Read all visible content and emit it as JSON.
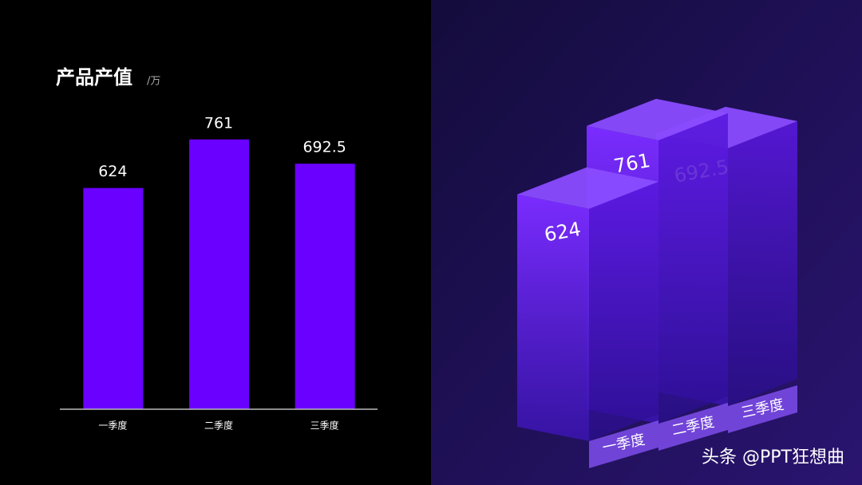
{
  "chart_data": [
    {
      "type": "bar",
      "title": "产品产值",
      "unit": "/万",
      "categories": [
        "一季度",
        "二季度",
        "三季度"
      ],
      "values": [
        624,
        761,
        692.5
      ],
      "color": "#6a00ff",
      "ylim": [
        0,
        900
      ]
    },
    {
      "type": "bar3d",
      "categories": [
        "一季度",
        "二季度",
        "三季度"
      ],
      "values": [
        624,
        761,
        692.5
      ],
      "color": "#6b1cff",
      "ylim": [
        0,
        900
      ]
    }
  ],
  "watermark": "头条 @PPT狂想曲"
}
